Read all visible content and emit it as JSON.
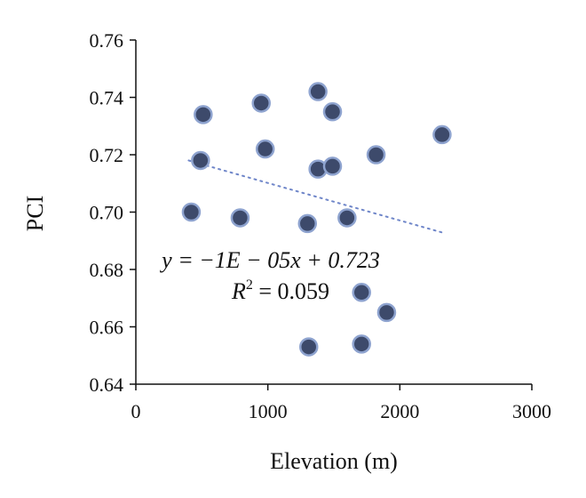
{
  "chart_data": {
    "type": "scatter",
    "xlabel": "Elevation (m)",
    "ylabel": "PCI",
    "xlim": [
      0,
      3000
    ],
    "ylim": [
      0.64,
      0.76
    ],
    "x_ticks": [
      "0",
      "1000",
      "2000",
      "3000"
    ],
    "y_ticks": [
      "0.64",
      "0.66",
      "0.68",
      "0.70",
      "0.72",
      "0.74",
      "0.76"
    ],
    "grid": false,
    "legend": "none",
    "marker_fill": "#3d4a6b",
    "marker_edge": "#8ea3cf",
    "trendline_color": "#6f86c9",
    "points": [
      {
        "x": 420,
        "y": 0.7
      },
      {
        "x": 490,
        "y": 0.718
      },
      {
        "x": 510,
        "y": 0.734
      },
      {
        "x": 790,
        "y": 0.698
      },
      {
        "x": 950,
        "y": 0.738
      },
      {
        "x": 980,
        "y": 0.722
      },
      {
        "x": 1300,
        "y": 0.696
      },
      {
        "x": 1310,
        "y": 0.653
      },
      {
        "x": 1380,
        "y": 0.742
      },
      {
        "x": 1380,
        "y": 0.715
      },
      {
        "x": 1490,
        "y": 0.735
      },
      {
        "x": 1490,
        "y": 0.716
      },
      {
        "x": 1600,
        "y": 0.698
      },
      {
        "x": 1710,
        "y": 0.672
      },
      {
        "x": 1710,
        "y": 0.654
      },
      {
        "x": 1820,
        "y": 0.72
      },
      {
        "x": 1900,
        "y": 0.665
      },
      {
        "x": 2320,
        "y": 0.727
      }
    ],
    "trendline": {
      "x": [
        400,
        2320
      ],
      "y": [
        0.718,
        0.6929
      ]
    },
    "equation": {
      "line1": "y = −1E − 05x + 0.723",
      "r2_prefix": "R",
      "r2_sup": "2",
      "r2_value": " = 0.059"
    }
  }
}
